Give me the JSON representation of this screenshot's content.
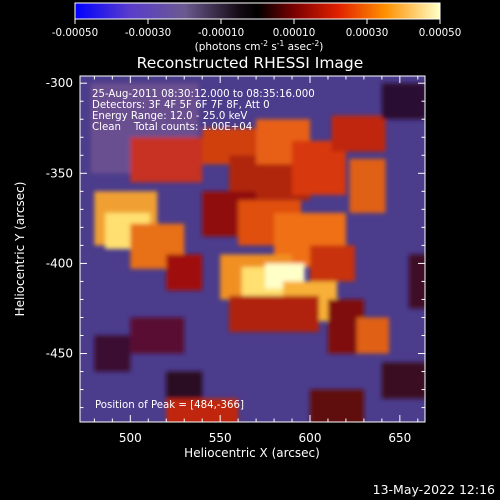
{
  "colorbar": {
    "tick_labels": [
      "-0.00050",
      "-0.00030",
      "-0.00010",
      "0.00010",
      "0.00030",
      "0.00050"
    ],
    "unit_prefix": "(photons cm",
    "unit_exp1": "-2",
    "unit_mid1": " s",
    "unit_exp2": "-1",
    "unit_mid2": " asec",
    "unit_exp3": "-2",
    "unit_suffix": ")",
    "range": [
      -0.0005,
      0.0005
    ]
  },
  "title": "Reconstructed RHESSI Image",
  "annotation": {
    "time_range": "25-Aug-2011 08:30:12.000 to 08:35:16.000",
    "detectors": "Detectors: 3F 4F 5F 6F 7F 8F, Att 0",
    "energy": "Energy Range: 12.0 - 25.0 keV",
    "clean": "Clean    Total counts: 1.00E+04",
    "peak": "Position of Peak = [484,-366]"
  },
  "axes": {
    "xlabel": "Heliocentric X (arcsec)",
    "ylabel": "Heliocentric Y (arcsec)",
    "x_ticks": [
      "500",
      "550",
      "600",
      "650"
    ],
    "y_ticks": [
      "-300",
      "-350",
      "-400",
      "-450"
    ],
    "xlim": [
      472,
      664
    ],
    "ylim": [
      -488,
      -296
    ]
  },
  "footer": {
    "date": "13-May-2022 12:16"
  },
  "colors": {
    "background": "#000000",
    "text": "#ffffff",
    "background_field": "#4b3c8c"
  }
}
